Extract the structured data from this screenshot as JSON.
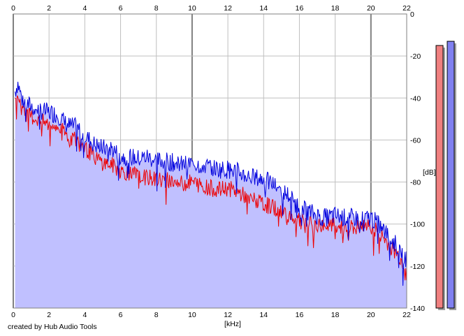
{
  "credit": "created by Hub Audio Tools",
  "chart_data": {
    "type": "area",
    "xlabel": "[kHz]",
    "ylabel": "[dB]",
    "xlim": [
      0,
      22
    ],
    "ylim": [
      -140,
      0
    ],
    "x_ticks": [
      0,
      2,
      4,
      6,
      8,
      10,
      12,
      14,
      16,
      18,
      20,
      22
    ],
    "y_ticks": [
      0,
      -20,
      -40,
      -60,
      -80,
      -100,
      -120,
      -140
    ],
    "grid": true,
    "fill_color": "#c0c0ff",
    "series": [
      {
        "color": "#0000dd",
        "x": [
          0.1,
          0.25,
          0.5,
          0.75,
          1.0,
          1.5,
          2.0,
          2.5,
          3.0,
          3.5,
          4.0,
          4.5,
          5.0,
          5.5,
          6.0,
          6.5,
          7.0,
          7.5,
          8.0,
          8.5,
          9.0,
          9.5,
          10.0,
          10.5,
          11.0,
          11.5,
          12.0,
          12.5,
          13.0,
          13.5,
          14.0,
          14.5,
          15.0,
          15.5,
          16.0,
          16.5,
          17.0,
          17.5,
          18.0,
          18.5,
          19.0,
          19.5,
          20.0,
          20.5,
          21.0,
          21.5,
          22.0
        ],
        "values": [
          -36,
          -32,
          -40,
          -42,
          -43,
          -45,
          -46,
          -47,
          -52,
          -53,
          -57,
          -61,
          -63,
          -63,
          -67,
          -67,
          -68,
          -67,
          -69,
          -69,
          -70,
          -71,
          -70,
          -71,
          -72,
          -73,
          -73,
          -74,
          -76,
          -77,
          -78,
          -80,
          -83,
          -86,
          -92,
          -93,
          -95,
          -96,
          -95,
          -96,
          -96,
          -97,
          -96,
          -100,
          -105,
          -110,
          -116
        ]
      },
      {
        "color": "#ee0000",
        "x": [
          0.1,
          0.25,
          0.5,
          0.75,
          1.0,
          1.5,
          2.0,
          2.5,
          3.0,
          3.5,
          4.0,
          4.5,
          5.0,
          5.5,
          6.0,
          6.5,
          7.0,
          7.5,
          8.0,
          8.5,
          9.0,
          9.5,
          10.0,
          10.5,
          11.0,
          11.5,
          12.0,
          12.5,
          13.0,
          13.5,
          14.0,
          14.5,
          15.0,
          15.5,
          16.0,
          16.5,
          17.0,
          17.5,
          18.0,
          18.5,
          19.0,
          19.5,
          20.0,
          20.5,
          21.0,
          21.5,
          22.0
        ],
        "values": [
          -40,
          -37,
          -45,
          -47,
          -48,
          -50,
          -52,
          -53,
          -57,
          -59,
          -63,
          -67,
          -70,
          -71,
          -74,
          -75,
          -76,
          -77,
          -78,
          -78,
          -79,
          -80,
          -79,
          -81,
          -82,
          -83,
          -82,
          -84,
          -86,
          -88,
          -90,
          -91,
          -93,
          -95,
          -98,
          -99,
          -100,
          -100,
          -100,
          -101,
          -101,
          -101,
          -100,
          -104,
          -109,
          -114,
          -120
        ]
      }
    ],
    "meters": [
      {
        "color": "#f08080",
        "level_db": -15
      },
      {
        "color": "#8080f0",
        "level_db": -13
      }
    ]
  }
}
